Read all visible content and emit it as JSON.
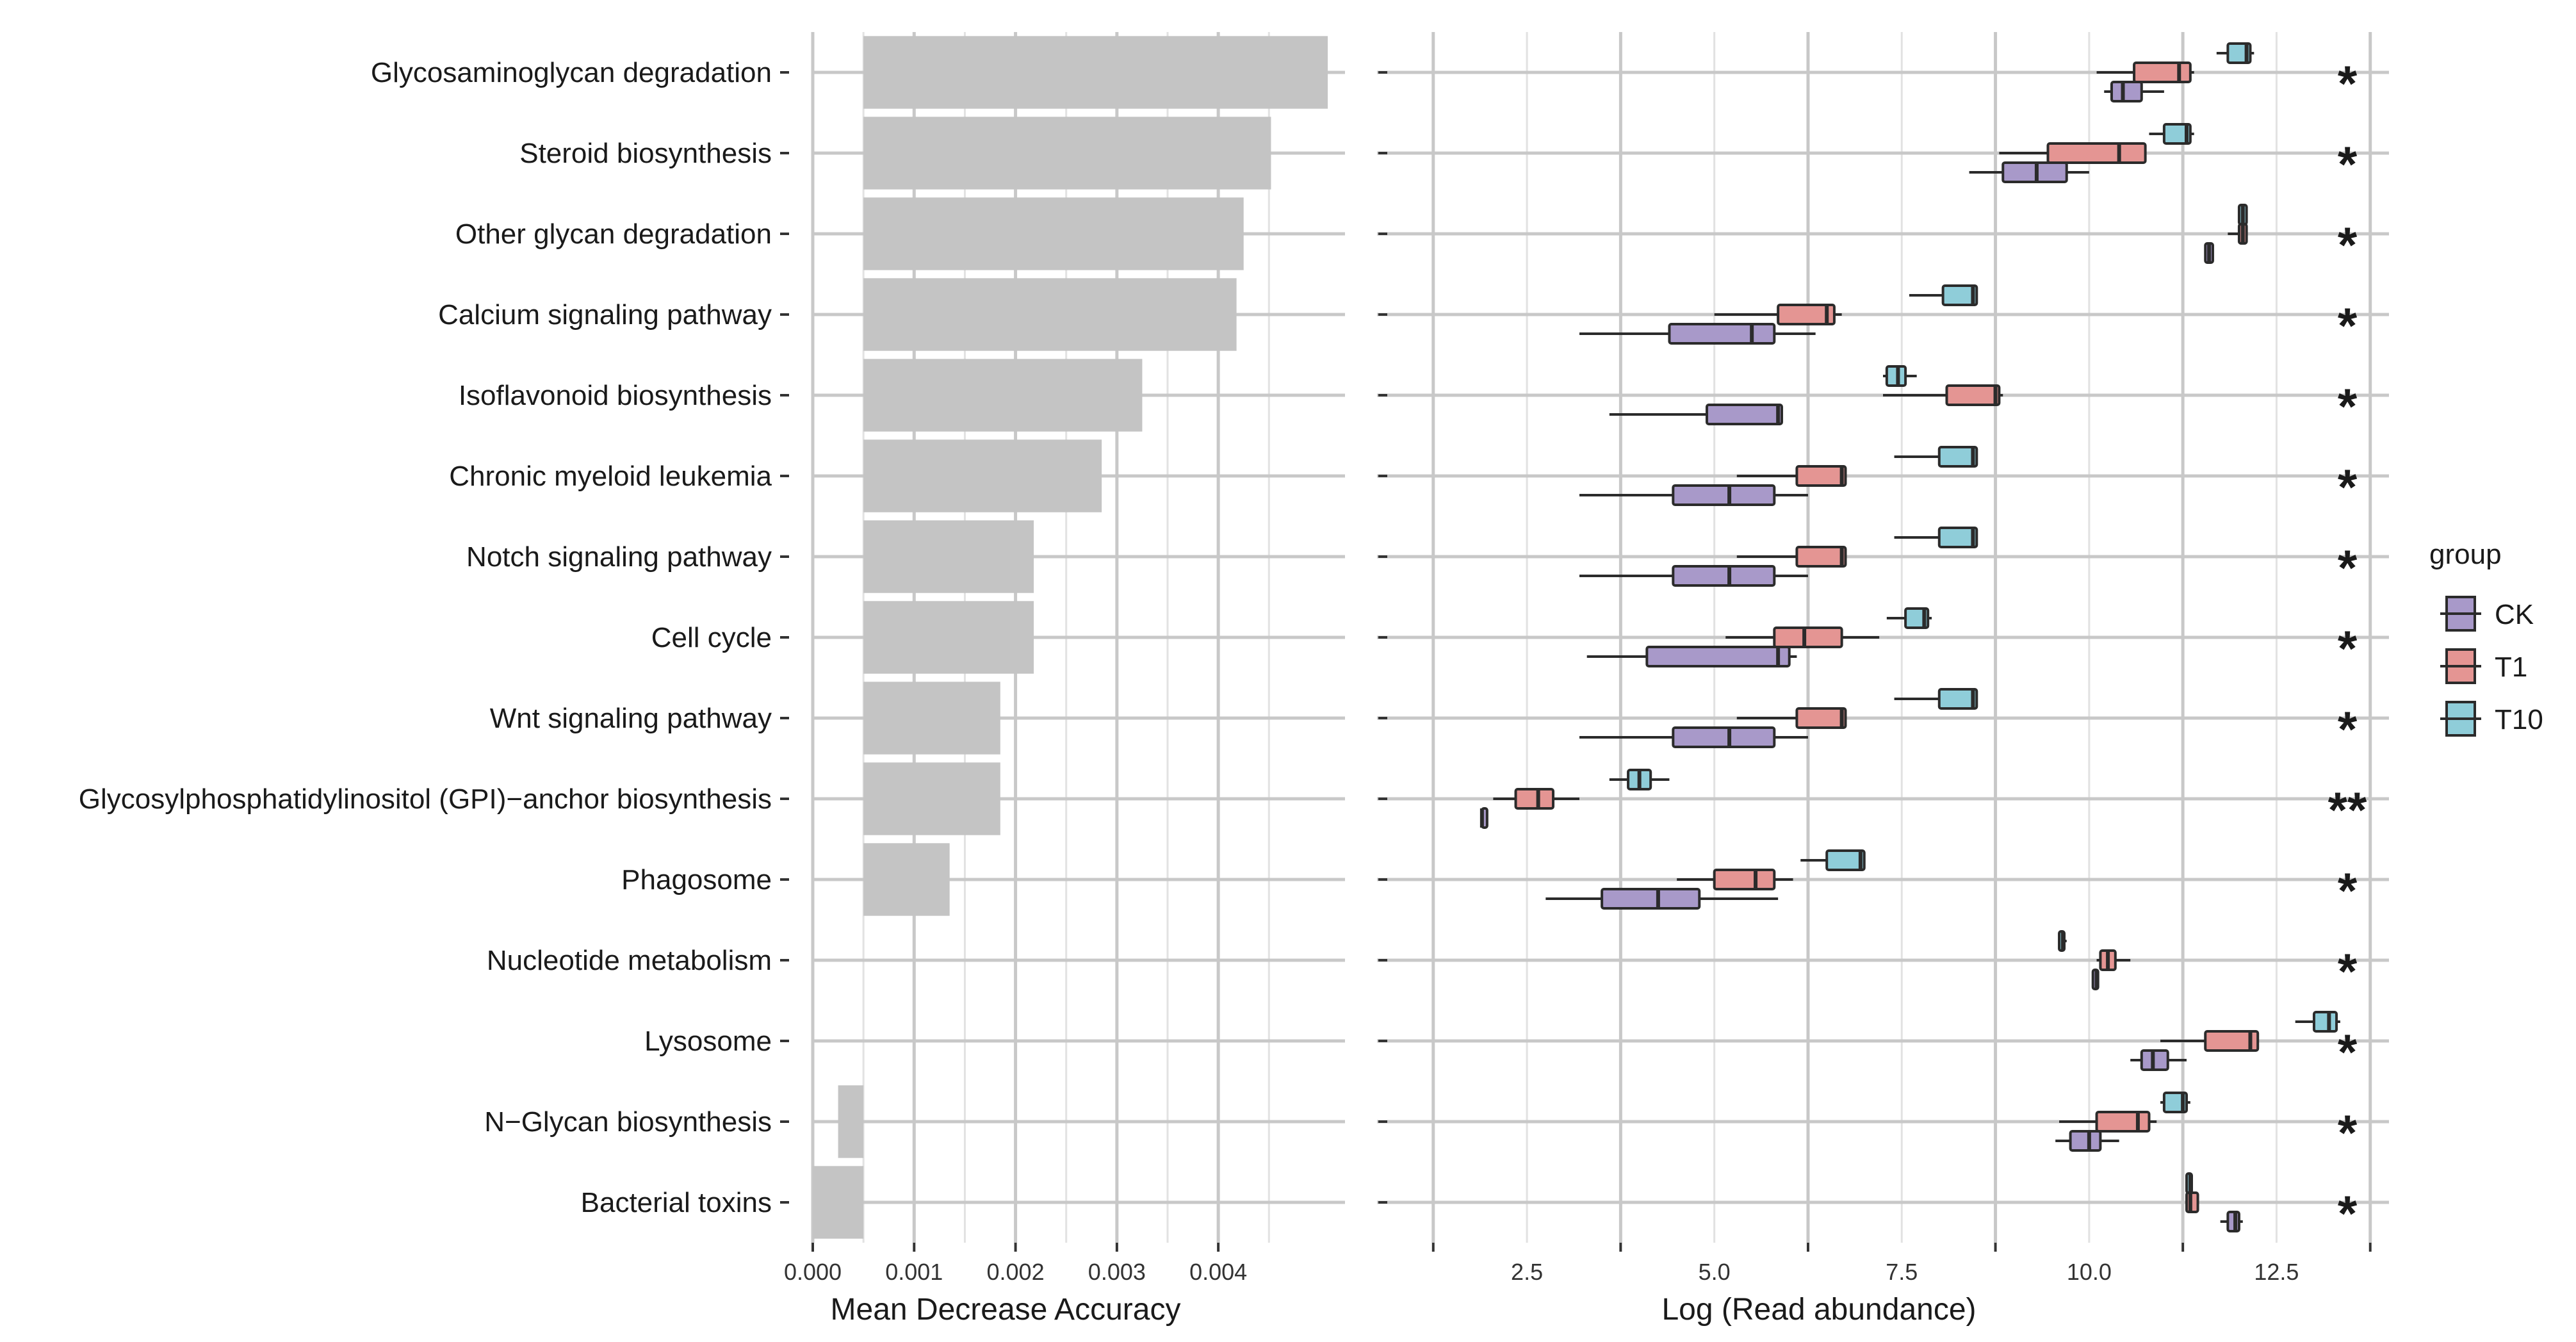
{
  "chart_data": [
    {
      "type": "bar",
      "orientation": "horizontal",
      "xlabel": "Mean Decrease Accuracy",
      "xlim": [
        0.0,
        0.00525
      ],
      "xticks": [
        "0.000",
        "0.001",
        "0.002",
        "0.003",
        "0.004"
      ],
      "xtick_values": [
        0.0,
        0.001,
        0.002,
        0.003,
        0.004
      ],
      "grid": true,
      "categories": [
        "Glycosaminoglycan degradation",
        "Steroid biosynthesis",
        "Other glycan degradation",
        "Calcium signaling pathway",
        "Isoflavonoid biosynthesis",
        "Chronic myeloid leukemia",
        "Notch signaling pathway",
        "Cell cycle",
        "Wnt signaling pathway",
        "Glycosylphosphatidylinositol (GPI)−anchor biosynthesis",
        "Phagosome",
        "Nucleotide metabolism",
        "Lysosome",
        "N−Glycan biosynthesis",
        "Bacterial toxins"
      ],
      "baseline": 0.0005,
      "values": [
        0.00508,
        0.00452,
        0.00425,
        0.00418,
        0.00325,
        0.00285,
        0.00218,
        0.00218,
        0.00185,
        0.00185,
        0.00135,
        0.0005,
        0.0005,
        0.00025,
        0.0
      ]
    },
    {
      "type": "boxplot",
      "orientation": "horizontal",
      "xlabel": "Log (Read abundance)",
      "xlim": [
        0.5,
        14.0
      ],
      "xticks": [
        "2.5",
        "5.0",
        "7.5",
        "10.0",
        "12.5"
      ],
      "xtick_values": [
        2.5,
        5.0,
        7.5,
        10.0,
        12.5
      ],
      "grid": true,
      "legend": {
        "title": "group",
        "position": "right",
        "entries": [
          "CK",
          "T1",
          "T10"
        ],
        "colors": [
          "#a899c9",
          "#e49593",
          "#8fcdd9"
        ]
      },
      "significance": [
        "*",
        "*",
        "*",
        "*",
        "*",
        "*",
        "*",
        "*",
        "*",
        "**",
        "*",
        "*",
        "*",
        "*",
        "*"
      ],
      "rows": [
        {
          "CK": {
            "min": 10.2,
            "q1": 10.3,
            "median": 10.45,
            "q3": 10.7,
            "max": 11.0
          },
          "T1": {
            "min": 10.1,
            "q1": 10.6,
            "median": 11.2,
            "q3": 11.35,
            "max": 11.4
          },
          "T10": {
            "min": 11.7,
            "q1": 11.85,
            "median": 12.1,
            "q3": 12.15,
            "max": 12.2
          }
        },
        {
          "CK": {
            "min": 8.4,
            "q1": 8.85,
            "median": 9.3,
            "q3": 9.7,
            "max": 10.0
          },
          "T1": {
            "min": 8.8,
            "q1": 9.45,
            "median": 10.4,
            "q3": 10.75,
            "max": 10.75
          },
          "T10": {
            "min": 10.8,
            "q1": 11.0,
            "median": 11.3,
            "q3": 11.35,
            "max": 11.4
          }
        },
        {
          "CK": {
            "min": 11.55,
            "q1": 11.55,
            "median": 11.6,
            "q3": 11.65,
            "max": 11.65
          },
          "T1": {
            "min": 11.85,
            "q1": 12.0,
            "median": 12.05,
            "q3": 12.1,
            "max": 12.1
          },
          "T10": {
            "min": 12.0,
            "q1": 12.0,
            "median": 12.05,
            "q3": 12.1,
            "max": 12.1
          }
        },
        {
          "CK": {
            "min": 3.2,
            "q1": 4.4,
            "median": 5.5,
            "q3": 5.8,
            "max": 6.35
          },
          "T1": {
            "min": 5.0,
            "q1": 5.85,
            "median": 6.5,
            "q3": 6.6,
            "max": 6.7
          },
          "T10": {
            "min": 7.6,
            "q1": 8.05,
            "median": 8.45,
            "q3": 8.5,
            "max": 8.5
          }
        },
        {
          "CK": {
            "min": 3.6,
            "q1": 4.9,
            "median": 5.85,
            "q3": 5.9,
            "max": 5.9
          },
          "T1": {
            "min": 7.25,
            "q1": 8.1,
            "median": 8.75,
            "q3": 8.8,
            "max": 8.85
          },
          "T10": {
            "min": 7.25,
            "q1": 7.3,
            "median": 7.45,
            "q3": 7.55,
            "max": 7.7
          }
        },
        {
          "CK": {
            "min": 3.2,
            "q1": 4.45,
            "median": 5.2,
            "q3": 5.8,
            "max": 6.25
          },
          "T1": {
            "min": 5.3,
            "q1": 6.1,
            "median": 6.7,
            "q3": 6.75,
            "max": 6.75
          },
          "T10": {
            "min": 7.4,
            "q1": 8.0,
            "median": 8.45,
            "q3": 8.5,
            "max": 8.5
          }
        },
        {
          "CK": {
            "min": 3.2,
            "q1": 4.45,
            "median": 5.2,
            "q3": 5.8,
            "max": 6.25
          },
          "T1": {
            "min": 5.3,
            "q1": 6.1,
            "median": 6.7,
            "q3": 6.75,
            "max": 6.75
          },
          "T10": {
            "min": 7.4,
            "q1": 8.0,
            "median": 8.45,
            "q3": 8.5,
            "max": 8.5
          }
        },
        {
          "CK": {
            "min": 3.3,
            "q1": 4.1,
            "median": 5.85,
            "q3": 6.0,
            "max": 6.1
          },
          "T1": {
            "min": 5.15,
            "q1": 5.8,
            "median": 6.2,
            "q3": 6.7,
            "max": 7.2
          },
          "T10": {
            "min": 7.3,
            "q1": 7.55,
            "median": 7.8,
            "q3": 7.85,
            "max": 7.9
          }
        },
        {
          "CK": {
            "min": 3.2,
            "q1": 4.45,
            "median": 5.2,
            "q3": 5.8,
            "max": 6.25
          },
          "T1": {
            "min": 5.3,
            "q1": 6.1,
            "median": 6.7,
            "q3": 6.75,
            "max": 6.75
          },
          "T10": {
            "min": 7.4,
            "q1": 8.0,
            "median": 8.45,
            "q3": 8.5,
            "max": 8.5
          }
        },
        {
          "CK": {
            "min": 1.9,
            "q1": 1.9,
            "median": 1.9,
            "q3": 1.95,
            "max": 1.95
          },
          "T1": {
            "min": 2.05,
            "q1": 2.35,
            "median": 2.65,
            "q3": 2.85,
            "max": 3.2
          },
          "T10": {
            "min": 3.6,
            "q1": 3.85,
            "median": 4.0,
            "q3": 4.15,
            "max": 4.4
          }
        },
        {
          "CK": {
            "min": 2.75,
            "q1": 3.5,
            "median": 4.25,
            "q3": 4.8,
            "max": 5.85
          },
          "T1": {
            "min": 4.5,
            "q1": 5.0,
            "median": 5.55,
            "q3": 5.8,
            "max": 6.05
          },
          "T10": {
            "min": 6.15,
            "q1": 6.5,
            "median": 6.95,
            "q3": 7.0,
            "max": 7.0
          }
        },
        {
          "CK": {
            "min": 10.05,
            "q1": 10.05,
            "median": 10.1,
            "q3": 10.1,
            "max": 10.1
          },
          "T1": {
            "min": 10.1,
            "q1": 10.15,
            "median": 10.25,
            "q3": 10.35,
            "max": 10.55
          },
          "T10": {
            "min": 9.6,
            "q1": 9.6,
            "median": 9.65,
            "q3": 9.65,
            "max": 9.7
          }
        },
        {
          "CK": {
            "min": 10.55,
            "q1": 10.7,
            "median": 10.85,
            "q3": 11.05,
            "max": 11.3
          },
          "T1": {
            "min": 10.95,
            "q1": 11.55,
            "median": 12.15,
            "q3": 12.25,
            "max": 12.25
          },
          "T10": {
            "min": 12.75,
            "q1": 13.0,
            "median": 13.2,
            "q3": 13.3,
            "max": 13.35
          }
        },
        {
          "CK": {
            "min": 9.55,
            "q1": 9.75,
            "median": 10.0,
            "q3": 10.15,
            "max": 10.4
          },
          "T1": {
            "min": 9.6,
            "q1": 10.1,
            "median": 10.65,
            "q3": 10.8,
            "max": 10.9
          },
          "T10": {
            "min": 10.95,
            "q1": 11.0,
            "median": 11.25,
            "q3": 11.3,
            "max": 11.35
          }
        },
        {
          "CK": {
            "min": 11.75,
            "q1": 11.85,
            "median": 11.95,
            "q3": 12.0,
            "max": 12.05
          },
          "T1": {
            "min": 11.3,
            "q1": 11.3,
            "median": 11.35,
            "q3": 11.45,
            "max": 11.45
          },
          "T10": {
            "min": 11.3,
            "q1": 11.3,
            "median": 11.35,
            "q3": 11.35,
            "max": 11.35
          }
        }
      ]
    }
  ]
}
